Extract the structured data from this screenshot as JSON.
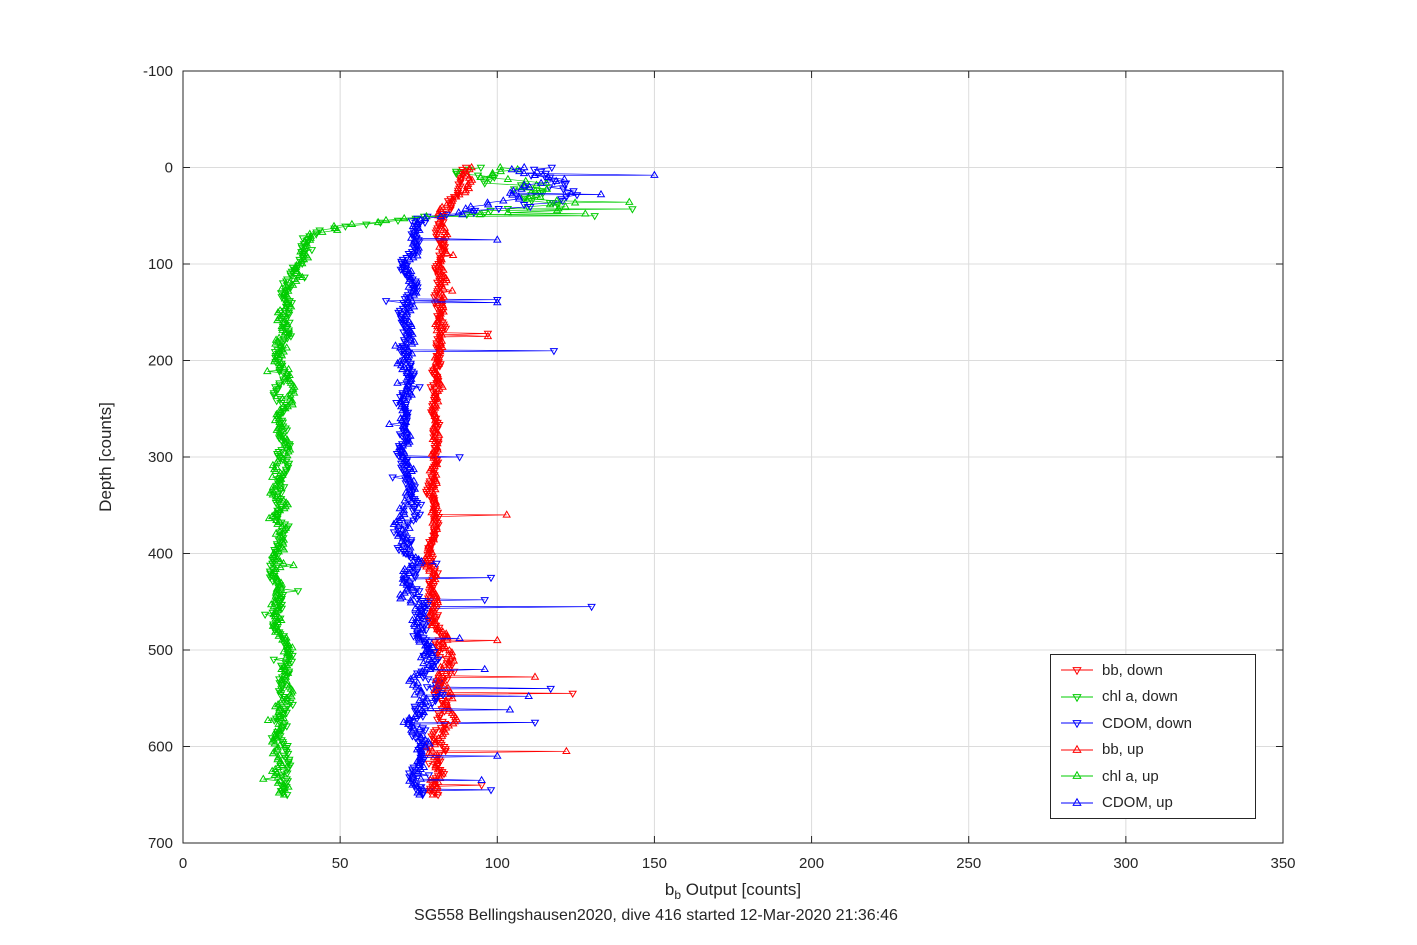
{
  "figure": {
    "title": "SG558 Bellingshausen2020, dive 416 started 12-Mar-2020 21:36:46",
    "ylabel": "Depth [counts]",
    "xlabel_prefix": "b",
    "xlabel_sub": "b",
    "xlabel_rest": " Output [counts]"
  },
  "chart_data": {
    "type": "scatter",
    "title": "SG558 Bellingshausen2020, dive 416 started 12-Mar-2020 21:36:46",
    "xlabel": "b_b Output [counts]",
    "ylabel": "Depth [counts]",
    "xlim": [
      0,
      350
    ],
    "ylim": [
      -100,
      700
    ],
    "y_direction": "depth-increasing-downward",
    "xticks": [
      0,
      50,
      100,
      150,
      200,
      250,
      300,
      350
    ],
    "yticks": [
      -100,
      0,
      100,
      200,
      300,
      400,
      500,
      600,
      700
    ],
    "grid": true,
    "grid_color": "#dcdcdc",
    "axes_color": "#262626",
    "legend_position": "lower right",
    "marker_style": "open-triangles-with-connecting-lines",
    "series": [
      {
        "name": "bb, down",
        "color": "#ff0000",
        "marker": "triangle-down",
        "traverse": "down",
        "depth_range": [
          0,
          650
        ],
        "n_points": 300,
        "profile": [
          [
            0,
            90,
            2.5
          ],
          [
            15,
            90,
            2
          ],
          [
            30,
            87,
            2
          ],
          [
            45,
            83,
            2
          ],
          [
            60,
            81,
            1.6
          ],
          [
            100,
            82,
            1.6
          ],
          [
            150,
            82,
            1.6
          ],
          [
            200,
            81,
            1.6
          ],
          [
            250,
            80,
            1.6
          ],
          [
            300,
            80,
            1.6
          ],
          [
            350,
            80,
            1.6
          ],
          [
            400,
            79,
            1.6
          ],
          [
            440,
            80,
            2
          ],
          [
            470,
            81,
            2.5
          ],
          [
            500,
            83,
            3
          ],
          [
            530,
            84,
            3
          ],
          [
            560,
            83,
            3
          ],
          [
            590,
            81,
            2.2
          ],
          [
            620,
            80,
            2.2
          ],
          [
            650,
            80,
            2.2
          ]
        ],
        "outliers": [
          [
            172,
            97
          ],
          [
            545,
            124
          ],
          [
            640,
            95
          ]
        ]
      },
      {
        "name": "chl a, down",
        "color": "#00cc00",
        "marker": "triangle-down",
        "traverse": "down",
        "depth_range": [
          0,
          650
        ],
        "n_points": 320,
        "profile": [
          [
            0,
            97,
            14
          ],
          [
            10,
            104,
            11
          ],
          [
            20,
            112,
            10
          ],
          [
            32,
            120,
            11
          ],
          [
            40,
            117,
            12
          ],
          [
            47,
            100,
            15
          ],
          [
            52,
            74,
            12
          ],
          [
            57,
            55,
            7
          ],
          [
            65,
            45,
            5
          ],
          [
            80,
            40,
            3.5
          ],
          [
            100,
            35,
            3
          ],
          [
            130,
            33,
            2.8
          ],
          [
            180,
            32,
            2.6
          ],
          [
            250,
            31.5,
            2.6
          ],
          [
            320,
            31,
            2.6
          ],
          [
            400,
            31,
            2.6
          ],
          [
            450,
            30,
            2.6
          ],
          [
            480,
            31,
            2.6
          ],
          [
            520,
            32,
            2.6
          ],
          [
            580,
            32,
            2.6
          ],
          [
            650,
            32,
            2.6
          ]
        ],
        "outliers": [
          [
            43,
            143
          ],
          [
            50,
            131
          ]
        ]
      },
      {
        "name": "CDOM, down",
        "color": "#0000ff",
        "marker": "triangle-down",
        "traverse": "down",
        "depth_range": [
          0,
          650
        ],
        "n_points": 320,
        "profile": [
          [
            0,
            113,
            9
          ],
          [
            15,
            115,
            9
          ],
          [
            30,
            113,
            10
          ],
          [
            40,
            105,
            10
          ],
          [
            48,
            88,
            8
          ],
          [
            55,
            77,
            3.2
          ],
          [
            70,
            74,
            2.6
          ],
          [
            100,
            72,
            2.6
          ],
          [
            140,
            72,
            2.6
          ],
          [
            200,
            71,
            2.2
          ],
          [
            260,
            70,
            2.2
          ],
          [
            310,
            70,
            2.6
          ],
          [
            350,
            72,
            3
          ],
          [
            390,
            70,
            3
          ],
          [
            430,
            72,
            3.5
          ],
          [
            460,
            74,
            4
          ],
          [
            490,
            76,
            4.5
          ],
          [
            510,
            79,
            5
          ],
          [
            535,
            79,
            5
          ],
          [
            560,
            76,
            4.5
          ],
          [
            590,
            74,
            3.5
          ],
          [
            620,
            74,
            3
          ],
          [
            650,
            75,
            3
          ]
        ],
        "outliers": [
          [
            137,
            100
          ],
          [
            190,
            118
          ],
          [
            300,
            88
          ],
          [
            425,
            98
          ],
          [
            448,
            96
          ],
          [
            455,
            130
          ],
          [
            540,
            117
          ],
          [
            575,
            112
          ],
          [
            645,
            98
          ]
        ]
      },
      {
        "name": "bb, up",
        "color": "#ff0000",
        "marker": "triangle-up",
        "traverse": "up",
        "depth_range": [
          0,
          650
        ],
        "n_points": 300,
        "profile": [
          [
            0,
            91,
            2.5
          ],
          [
            20,
            90,
            2.2
          ],
          [
            35,
            86,
            2
          ],
          [
            50,
            82,
            1.8
          ],
          [
            100,
            82,
            1.6
          ],
          [
            150,
            82,
            1.6
          ],
          [
            200,
            81,
            1.6
          ],
          [
            250,
            80,
            1.6
          ],
          [
            300,
            80,
            1.6
          ],
          [
            350,
            80,
            1.6
          ],
          [
            400,
            79,
            1.6
          ],
          [
            440,
            80,
            2
          ],
          [
            470,
            82,
            2.5
          ],
          [
            500,
            84,
            3
          ],
          [
            530,
            84,
            3
          ],
          [
            560,
            83,
            3
          ],
          [
            600,
            80,
            2.2
          ],
          [
            650,
            80,
            2.2
          ]
        ],
        "outliers": [
          [
            175,
            97
          ],
          [
            360,
            103
          ],
          [
            490,
            100
          ],
          [
            528,
            112
          ],
          [
            605,
            122
          ]
        ]
      },
      {
        "name": "chl a, up",
        "color": "#00cc00",
        "marker": "triangle-up",
        "traverse": "up",
        "depth_range": [
          0,
          650
        ],
        "n_points": 320,
        "profile": [
          [
            0,
            95,
            13
          ],
          [
            10,
            103,
            11
          ],
          [
            22,
            112,
            10
          ],
          [
            34,
            121,
            11
          ],
          [
            42,
            115,
            13
          ],
          [
            48,
            96,
            15
          ],
          [
            54,
            70,
            11
          ],
          [
            60,
            52,
            6
          ],
          [
            70,
            44,
            4.5
          ],
          [
            85,
            39,
            3.2
          ],
          [
            110,
            34,
            3
          ],
          [
            150,
            32.5,
            2.8
          ],
          [
            220,
            32,
            2.6
          ],
          [
            300,
            31,
            2.6
          ],
          [
            380,
            31,
            2.6
          ],
          [
            450,
            30,
            2.6
          ],
          [
            500,
            31.5,
            2.6
          ],
          [
            570,
            32,
            2.6
          ],
          [
            650,
            32,
            2.6
          ]
        ],
        "outliers": [
          [
            36,
            142
          ],
          [
            48,
            128
          ]
        ]
      },
      {
        "name": "CDOM, up",
        "color": "#0000ff",
        "marker": "triangle-up",
        "traverse": "up",
        "depth_range": [
          0,
          650
        ],
        "n_points": 320,
        "profile": [
          [
            0,
            112,
            9
          ],
          [
            15,
            116,
            9
          ],
          [
            30,
            114,
            10
          ],
          [
            40,
            106,
            10
          ],
          [
            48,
            89,
            8
          ],
          [
            55,
            77,
            3.2
          ],
          [
            70,
            74,
            2.6
          ],
          [
            100,
            72,
            2.6
          ],
          [
            140,
            72,
            2.6
          ],
          [
            200,
            71,
            2.2
          ],
          [
            260,
            70,
            2.2
          ],
          [
            310,
            70,
            2.6
          ],
          [
            350,
            72,
            3
          ],
          [
            390,
            70,
            3
          ],
          [
            430,
            72,
            3.5
          ],
          [
            460,
            74,
            4
          ],
          [
            490,
            77,
            4.5
          ],
          [
            510,
            80,
            5
          ],
          [
            535,
            79,
            5
          ],
          [
            560,
            76,
            4.5
          ],
          [
            590,
            74,
            3.5
          ],
          [
            620,
            74,
            3
          ],
          [
            650,
            75,
            3
          ]
        ],
        "outliers": [
          [
            8,
            150
          ],
          [
            28,
            133
          ],
          [
            75,
            100
          ],
          [
            140,
            100
          ],
          [
            488,
            88
          ],
          [
            520,
            96
          ],
          [
            548,
            110
          ],
          [
            562,
            104
          ],
          [
            610,
            100
          ],
          [
            635,
            95
          ]
        ]
      }
    ]
  }
}
